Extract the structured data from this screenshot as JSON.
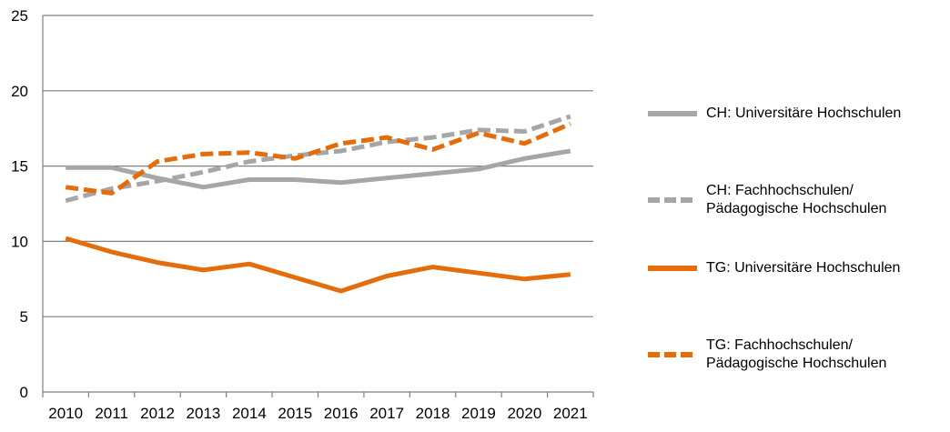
{
  "chart_data": {
    "type": "line",
    "title": "",
    "xlabel": "",
    "ylabel": "",
    "x": [
      "2010",
      "2011",
      "2012",
      "2013",
      "2014",
      "2015",
      "2016",
      "2017",
      "2018",
      "2019",
      "2020",
      "2021"
    ],
    "ylim": [
      0,
      25
    ],
    "yticks": [
      "0",
      "5",
      "10",
      "15",
      "20",
      "25"
    ],
    "grid": "horizontal",
    "legend_position": "right",
    "series": [
      {
        "name": "CH: Universitäre Hochschulen",
        "color": "#a6a6a6",
        "style": "solid",
        "values": [
          14.9,
          14.9,
          14.2,
          13.6,
          14.1,
          14.1,
          13.9,
          14.2,
          14.5,
          14.8,
          15.5,
          16.0
        ]
      },
      {
        "name": "CH: Fachhochschulen/\nPädagogische Hochschulen",
        "color": "#a6a6a6",
        "style": "dashed",
        "values": [
          12.7,
          13.5,
          14.0,
          14.6,
          15.3,
          15.7,
          16.0,
          16.6,
          16.9,
          17.4,
          17.3,
          18.3
        ]
      },
      {
        "name": "TG: Universitäre Hochschulen",
        "color": "#e46c0a",
        "style": "solid",
        "values": [
          10.2,
          9.3,
          8.6,
          8.1,
          8.5,
          7.6,
          6.7,
          7.7,
          8.3,
          7.9,
          7.5,
          7.8
        ]
      },
      {
        "name": "TG: Fachhochschulen/\nPädagogische Hochschulen",
        "color": "#e46c0a",
        "style": "dashed",
        "values": [
          13.6,
          13.2,
          15.3,
          15.8,
          15.9,
          15.5,
          16.5,
          16.9,
          16.1,
          17.2,
          16.5,
          17.8
        ]
      }
    ]
  }
}
